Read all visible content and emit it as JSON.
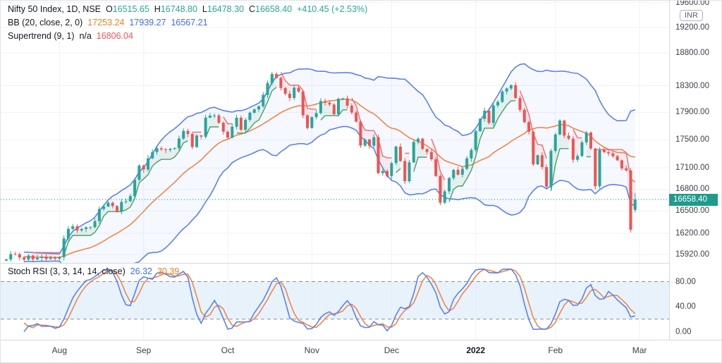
{
  "legend": {
    "title": "Nifty 50 Index, 1D, NSE",
    "o_key": "O",
    "o_val": "16515.65",
    "h_key": "H",
    "h_val": "16748.80",
    "l_key": "L",
    "l_val": "16478.30",
    "c_key": "C",
    "c_val": "16658.40",
    "change": "+410.45 (+2.53%)",
    "bb_title": "BB (20, close, 2, 0)",
    "bb_basis": "17253.24",
    "bb_upper": "17939.27",
    "bb_lower": "16567.21",
    "st_title": "Supertrend (9, 1)",
    "st_state": "n/a",
    "st_val": "16806.04",
    "stoch_title": "Stoch RSI (3, 3, 14, 14, close)",
    "stoch_k": "26.32",
    "stoch_d": "30.39"
  },
  "price_axis": {
    "currency_badge": "INR",
    "current_label": "16658.40",
    "tick_prices": [
      19600,
      19200,
      18800,
      18300,
      17900,
      17500,
      17100,
      16800,
      16500,
      16200,
      15920
    ]
  },
  "sub_axis": {
    "tick_values": [
      80,
      40,
      0
    ]
  },
  "time_axis": {
    "labels": [
      {
        "text": "Aug",
        "bar": 12,
        "bold": false
      },
      {
        "text": "Sep",
        "bar": 31,
        "bold": false
      },
      {
        "text": "Oct",
        "bar": 50,
        "bold": false
      },
      {
        "text": "Nov",
        "bar": 69,
        "bold": false
      },
      {
        "text": "Dec",
        "bar": 87,
        "bold": false
      },
      {
        "text": "2022",
        "bar": 106,
        "bold": true
      },
      {
        "text": "Feb",
        "bar": 124,
        "bold": false
      },
      {
        "text": "Mar",
        "bar": 143,
        "bold": false
      }
    ]
  },
  "colors": {
    "candle_up": "#26a69a",
    "candle_down": "#ef5350",
    "bb_band": "#5b82ec",
    "bb_basis": "#f0864a",
    "bb_fill": "#5b82ec",
    "st_up": "#4f9e63",
    "st_down": "#ef6a6e",
    "stoch_k": "#5b82ec",
    "stoch_d": "#f0864a",
    "price_line": "#26a69a",
    "label_bg": "#1e9b8c",
    "grid": "#f0f2f5",
    "dashed": "#8a8e98",
    "stoch_band_fill": "#dcebf8"
  },
  "chart_data": {
    "type": "candlestick",
    "symbol": "Nifty 50 Index",
    "interval": "1D",
    "exchange": "NSE",
    "currency": "INR",
    "last_candle": {
      "open": 16515.65,
      "high": 16748.8,
      "low": 16478.3,
      "close": 16658.4,
      "change": 410.45,
      "change_pct": 2.53
    },
    "indicators": {
      "bollinger": {
        "params": [
          20,
          "close",
          2,
          0
        ],
        "basis": 17253.24,
        "upper": 17939.27,
        "lower": 16567.21
      },
      "supertrend": {
        "params": [
          9,
          1
        ],
        "value": 16806.04,
        "state": "n/a"
      },
      "stoch_rsi": {
        "params": [
          3,
          3,
          14,
          14,
          "close"
        ],
        "k": 26.32,
        "d": 30.39,
        "upper_band": 80,
        "lower_band": 20
      }
    },
    "ylim": [
      15790,
      19650
    ],
    "y_ticks": [
      19600,
      19200,
      18800,
      18300,
      17900,
      17500,
      17100,
      16800,
      16500,
      16200,
      15920
    ],
    "sub_ylim": [
      0,
      100
    ],
    "sub_ticks": [
      80,
      40,
      0
    ],
    "grid": true,
    "closes": [
      15854,
      15924,
      15923,
      15880,
      15852,
      15905,
      15856,
      15874,
      15890,
      15860,
      15878,
      15863,
      15885,
      16130,
      16259,
      16295,
      16238,
      16258,
      16280,
      16282,
      16364,
      16529,
      16563,
      16615,
      16569,
      16496,
      16625,
      16635,
      16705,
      16931,
      17132,
      17076,
      17234,
      17324,
      17378,
      17362,
      17353,
      17369,
      17380,
      17519,
      17629,
      17585,
      17396,
      17562,
      17546,
      17823,
      17853,
      17855,
      17748,
      17618,
      17532,
      17691,
      17822,
      17646,
      17790,
      17895,
      17946,
      17992,
      18161,
      18339,
      18477,
      18419,
      18266,
      18178,
      18115,
      18268,
      18211,
      17857,
      17672,
      17830,
      17889,
      18069,
      18044,
      18017,
      17874,
      18103,
      18109,
      18000,
      17899,
      17765,
      17417,
      17503,
      17415,
      17537,
      17026,
      17054,
      16983,
      17166,
      17402,
      17197,
      16912,
      17177,
      17469,
      17516,
      17368,
      17324,
      17221,
      16985,
      16614,
      16771,
      16955,
      17072,
      17004,
      17086,
      17233,
      17354,
      17626,
      17805,
      17925,
      17746,
      18003,
      18056,
      18212,
      18258,
      18308,
      18113,
      17938,
      17757,
      17617,
      17149,
      17278,
      17110,
      16836,
      17340,
      17577,
      17780,
      17560,
      17516,
      17214,
      17267,
      17464,
      17606,
      17375,
      16842,
      17352,
      17322,
      17305,
      17265,
      17206,
      17092,
      17063,
      16248,
      16658.4
    ]
  }
}
